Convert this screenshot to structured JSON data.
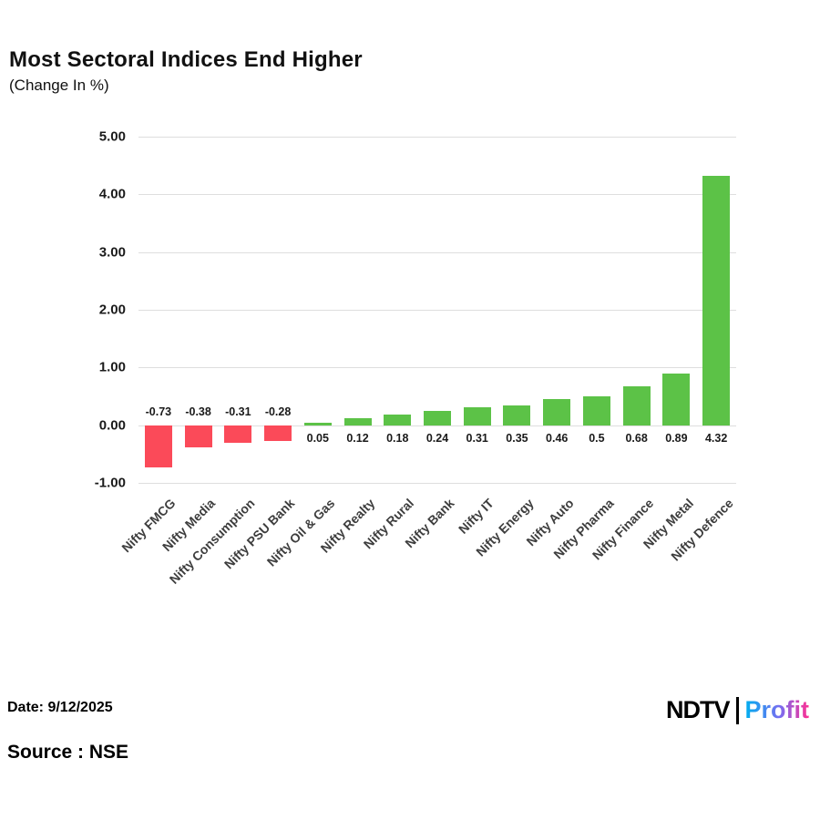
{
  "header": {
    "title": "Most Sectoral Indices End Higher",
    "subtitle": "(Change In %)"
  },
  "chart_data": {
    "type": "bar",
    "title": "Most Sectoral Indices End Higher",
    "subtitle": "(Change In %)",
    "categories": [
      "Nifty FMCG",
      "Nifty Media",
      "Nifty Consumption",
      "Nifty PSU Bank",
      "Nifty Oil & Gas",
      "Nifty Realty",
      "Nifty Rural",
      "Nifty Bank",
      "Nifty IT",
      "Nifty Energy",
      "Nifty Auto",
      "Nifty Pharma",
      "Nifty Finance",
      "Nifty Metal",
      "Nifty Defence"
    ],
    "values": [
      -0.73,
      -0.38,
      -0.31,
      -0.28,
      0.05,
      0.12,
      0.18,
      0.24,
      0.31,
      0.35,
      0.46,
      0.5,
      0.68,
      0.89,
      4.32
    ],
    "value_labels": [
      "-0.73",
      "-0.38",
      "-0.31",
      "-0.28",
      "0.05",
      "0.12",
      "0.18",
      "0.24",
      "0.31",
      "0.35",
      "0.46",
      "0.5",
      "0.68",
      "0.89",
      "4.32"
    ],
    "xlabel": "",
    "ylabel": "",
    "ylim": [
      -1,
      5
    ],
    "yticks": [
      5,
      4,
      3,
      2,
      1,
      0,
      -1
    ],
    "ytick_labels": [
      "5.00",
      "4.00",
      "3.00",
      "2.00",
      "1.00",
      "0.00",
      "-1.00"
    ],
    "grid": true,
    "legend": "none",
    "colors": {
      "positive": "#5cc247",
      "negative": "#fb4a59"
    }
  },
  "footer": {
    "date_label": "Date: 9/12/2025",
    "source_label": "Source : NSE",
    "logo": {
      "ndtv": "NDTV",
      "separator": "|",
      "profit": "Profit"
    }
  }
}
